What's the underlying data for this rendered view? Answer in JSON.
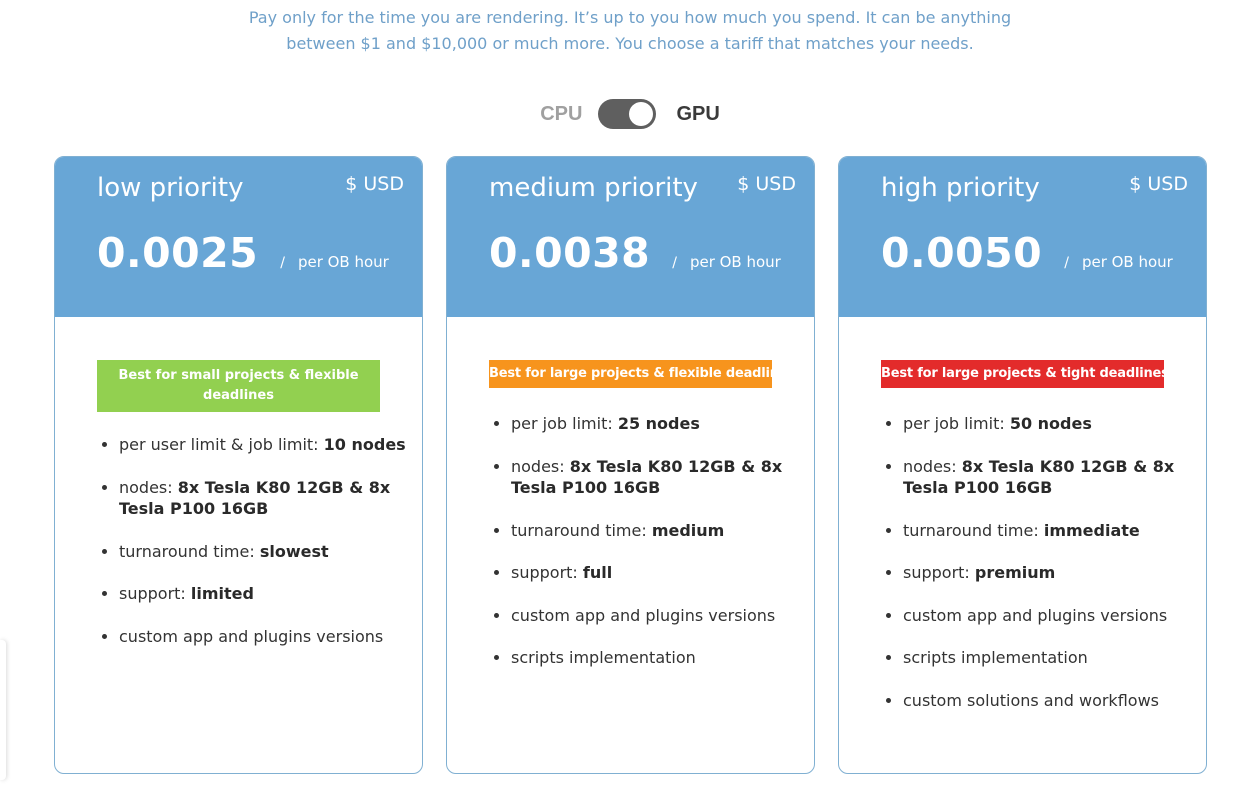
{
  "intro": {
    "line1": "Pay only for the time you are rendering. It’s up to you how much you spend. It can be anything",
    "line2": "between $1 and $10,000 or much more. You choose a tariff that matches your needs."
  },
  "toggle": {
    "left_label": "CPU",
    "right_label": "GPU",
    "selected": "GPU"
  },
  "plans": [
    {
      "name": "low priority",
      "currency": "$ USD",
      "price": "0.0025",
      "slash": "/",
      "unit": "per OB hour",
      "badge": "Best for small projects & flexible deadlines",
      "badge_color": "#92d050",
      "features": [
        {
          "label": "per user limit & job limit: ",
          "value": "10 nodes"
        },
        {
          "label": "nodes: ",
          "value": "8x Tesla K80 12GB & 8x Tesla P100 16GB"
        },
        {
          "label": "turnaround time: ",
          "value": "slowest"
        },
        {
          "label": "support: ",
          "value": "limited"
        },
        {
          "label": "custom app and plugins versions",
          "value": ""
        }
      ]
    },
    {
      "name": "medium priority",
      "currency": "$ USD",
      "price": "0.0038",
      "slash": "/",
      "unit": "per OB hour",
      "badge": "Best for large projects & flexible deadlines",
      "badge_color": "#f7941d",
      "features": [
        {
          "label": "per job limit: ",
          "value": "25 nodes"
        },
        {
          "label": "nodes: ",
          "value": "8x Tesla K80 12GB & 8x Tesla P100 16GB"
        },
        {
          "label": "turnaround time: ",
          "value": "medium"
        },
        {
          "label": "support: ",
          "value": "full"
        },
        {
          "label": "custom app and plugins versions",
          "value": ""
        },
        {
          "label": "scripts implementation",
          "value": ""
        }
      ]
    },
    {
      "name": "high priority",
      "currency": "$ USD",
      "price": "0.0050",
      "slash": "/",
      "unit": "per OB hour",
      "badge": "Best for large projects & tight deadlines",
      "badge_color": "#e32b2b",
      "features": [
        {
          "label": "per job limit: ",
          "value": "50 nodes"
        },
        {
          "label": "nodes: ",
          "value": "8x Tesla K80 12GB & 8x Tesla P100 16GB"
        },
        {
          "label": "turnaround time: ",
          "value": "immediate"
        },
        {
          "label": "support: ",
          "value": "premium"
        },
        {
          "label": "custom app and plugins versions",
          "value": ""
        },
        {
          "label": "scripts implementation",
          "value": ""
        },
        {
          "label": "custom solutions and workflows",
          "value": ""
        }
      ]
    }
  ]
}
